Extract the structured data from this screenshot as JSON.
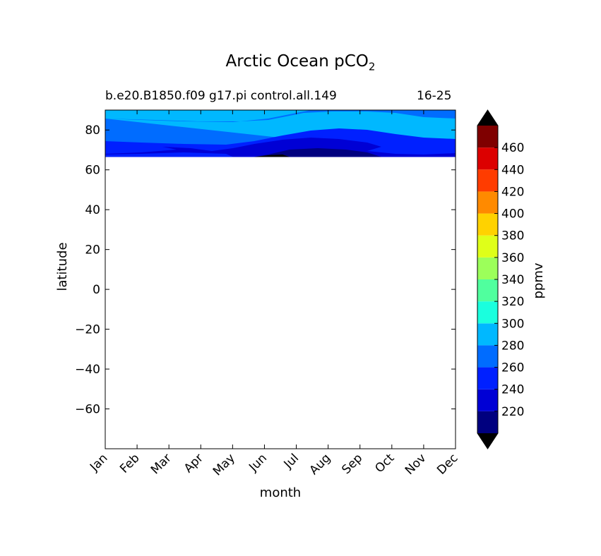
{
  "chart_data": {
    "type": "heatmap",
    "title": "Arctic Ocean pCO",
    "title_subscript": "2",
    "subtitle_left": "b.e20.B1850.f09 g17.pi control.all.149",
    "subtitle_right": "16-25",
    "xlabel": "month",
    "ylabel": "latitude",
    "x_categories": [
      "Jan",
      "Feb",
      "Mar",
      "Apr",
      "May",
      "Jun",
      "Jul",
      "Aug",
      "Sep",
      "Oct",
      "Nov",
      "Dec"
    ],
    "ylim": [
      -80,
      90
    ],
    "y_ticks": [
      "80",
      "60",
      "40",
      "20",
      "0",
      "−20",
      "−40",
      "−60"
    ],
    "y_tick_values": [
      80,
      60,
      40,
      20,
      0,
      -20,
      -40,
      -60
    ],
    "colorbar": {
      "label": "ppmv",
      "levels": [
        200,
        220,
        240,
        260,
        280,
        300,
        320,
        340,
        360,
        380,
        400,
        420,
        440,
        460,
        480
      ],
      "tick_labels": [
        "220",
        "240",
        "260",
        "280",
        "300",
        "320",
        "340",
        "360",
        "380",
        "400",
        "420",
        "440",
        "460"
      ],
      "tick_values": [
        220,
        240,
        260,
        280,
        300,
        320,
        340,
        360,
        380,
        400,
        420,
        440,
        460
      ],
      "colors": [
        "#00007f",
        "#0000d5",
        "#0020ff",
        "#006cff",
        "#00b8ff",
        "#1affde",
        "#50ff9e",
        "#9cff5a",
        "#dfff19",
        "#ffd200",
        "#ff8a00",
        "#ff3c00",
        "#dc0000",
        "#7f0000"
      ],
      "extend_low_color": "#000000",
      "extend_high_color": "#000000"
    },
    "filled_contour_bands": [
      {
        "level_range": [
          280,
          300
        ],
        "color": "#00b8ff",
        "description": "near-pole region, Jan-Dec at ~85-90N"
      },
      {
        "level_range": [
          260,
          280
        ],
        "color": "#006cff",
        "description": "mid-Arctic band ~70-87N"
      },
      {
        "level_range": [
          240,
          260
        ],
        "color": "#0020ff",
        "description": "southern Arctic band ~66-75N"
      },
      {
        "level_range": [
          220,
          240
        ],
        "color": "#0000d5",
        "description": "summer minimum near 66-73N, Jun-Oct"
      },
      {
        "level_range": [
          200,
          220
        ],
        "color": "#00007f",
        "description": "deepest minimum Jul-Aug near 66-67N"
      }
    ],
    "grid": false,
    "legend": "colorbar-right"
  }
}
